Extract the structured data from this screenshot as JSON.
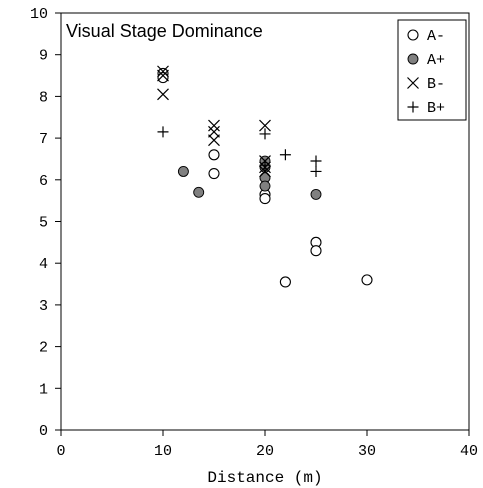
{
  "chart_data": {
    "type": "scatter",
    "title": "Visual Stage Dominance",
    "xlabel": "Distance (m)",
    "ylabel": "",
    "xlim": [
      0,
      40
    ],
    "ylim": [
      0,
      10
    ],
    "xticks": [
      0,
      10,
      20,
      30,
      40
    ],
    "yticks": [
      0,
      1,
      2,
      3,
      4,
      5,
      6,
      7,
      8,
      9,
      10
    ],
    "grid": false,
    "legend_position": "top-right",
    "series": [
      {
        "name": "A-",
        "marker": "open-circle",
        "color": "#000000",
        "points": [
          [
            10,
            8.55
          ],
          [
            10,
            8.45
          ],
          [
            15,
            6.6
          ],
          [
            15,
            6.15
          ],
          [
            20,
            5.65
          ],
          [
            20,
            5.55
          ],
          [
            22,
            3.55
          ],
          [
            25,
            4.5
          ],
          [
            25,
            4.3
          ],
          [
            30,
            3.6
          ]
        ]
      },
      {
        "name": "A+",
        "marker": "filled-circle",
        "color": "#808080",
        "points": [
          [
            12,
            6.2
          ],
          [
            13.5,
            5.7
          ],
          [
            20,
            6.45
          ],
          [
            20,
            6.3
          ],
          [
            20,
            6.05
          ],
          [
            20,
            5.85
          ],
          [
            25,
            5.65
          ]
        ]
      },
      {
        "name": "B-",
        "marker": "x",
        "color": "#000000",
        "points": [
          [
            10,
            8.6
          ],
          [
            10,
            8.5
          ],
          [
            10,
            8.05
          ],
          [
            15,
            7.3
          ],
          [
            15,
            7.15
          ],
          [
            15,
            6.95
          ],
          [
            20,
            7.3
          ],
          [
            20,
            6.45
          ],
          [
            20,
            6.3
          ],
          [
            20,
            6.2
          ]
        ]
      },
      {
        "name": "B+",
        "marker": "plus",
        "color": "#000000",
        "points": [
          [
            10,
            7.15
          ],
          [
            20,
            7.1
          ],
          [
            20,
            6.35
          ],
          [
            22,
            6.6
          ],
          [
            25,
            6.45
          ],
          [
            25,
            6.2
          ]
        ]
      }
    ]
  }
}
